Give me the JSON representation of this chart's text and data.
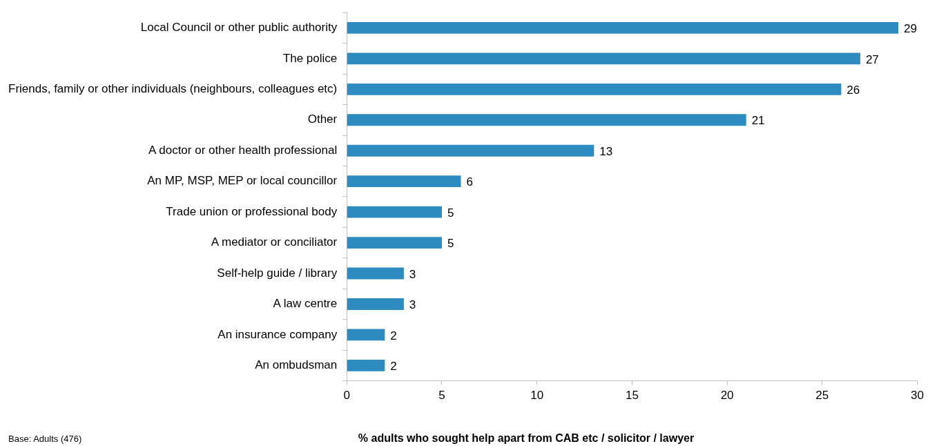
{
  "chart_data": {
    "type": "bar",
    "orientation": "horizontal",
    "xlabel": "% adults who sought help apart from CAB etc / solicitor / lawyer",
    "categories": [
      "Local Council or other public authority",
      "The police",
      "Friends, family or other individuals (neighbours, colleagues etc)",
      "Other",
      "A doctor or other health professional",
      "An MP, MSP, MEP or local councillor",
      "Trade union or professional body",
      "A mediator or conciliator",
      "Self-help guide / library",
      "A law centre",
      "An insurance company",
      "An ombudsman"
    ],
    "values": [
      29,
      27,
      26,
      21,
      13,
      6,
      5,
      5,
      3,
      3,
      2,
      2
    ],
    "color": "#2e8bc0",
    "xlim": [
      0,
      30
    ],
    "xticks": [
      0,
      5,
      10,
      15,
      20,
      25,
      30
    ],
    "grid": false,
    "legend": false,
    "data_labels": true,
    "annotations": [
      "Base: Adults (476)"
    ]
  }
}
